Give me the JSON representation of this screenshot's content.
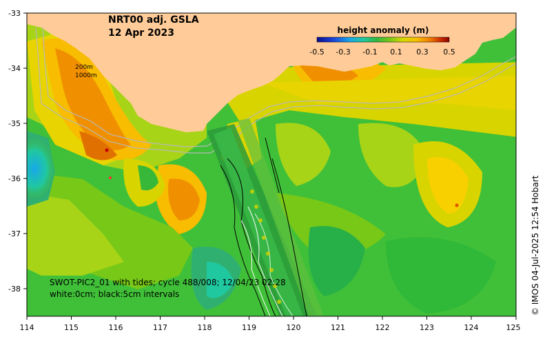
{
  "map": {
    "title_line1": "NRT00 adj. GSLA",
    "title_line2": "12 Apr 2023",
    "isobath_labels": [
      "200m",
      "1000m"
    ],
    "track_caption_line1": "SWOT-PIC2_01 with tides; cycle 488/008; 12/04/23 02:28",
    "track_caption_line2": "white:0cm; black:5cm intervals",
    "credit": "© IMOS 04-Jul-2025 12:54 Hobart",
    "x_ticks": [
      "114",
      "115",
      "116",
      "117",
      "118",
      "119",
      "120",
      "121",
      "122",
      "123",
      "124",
      "125"
    ],
    "y_ticks": [
      "-33",
      "-34",
      "-35",
      "-36",
      "-37",
      "-38"
    ],
    "colorbar": {
      "title": "height anomaly (m)",
      "ticks": [
        "-0.5",
        "-0.3",
        "-0.1",
        "0.1",
        "0.3",
        "0.5"
      ],
      "colors": [
        "#0a0f8c",
        "#1840d8",
        "#18a8e8",
        "#20c8a0",
        "#30b840",
        "#78c818",
        "#d8d800",
        "#f8c000",
        "#f08000",
        "#d03000",
        "#8a0000"
      ]
    },
    "land_color": "#ffcc99",
    "axis_range": {
      "lon": [
        114,
        125
      ],
      "lat": [
        -38.5,
        -33
      ]
    }
  }
}
